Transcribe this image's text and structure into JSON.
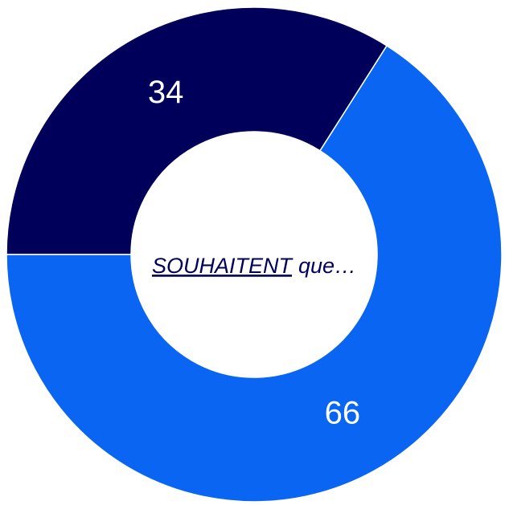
{
  "chart_data": {
    "type": "donut",
    "categories": [
      null,
      null
    ],
    "values": [
      34,
      66
    ],
    "colors": [
      "#00005a",
      "#0a66f2"
    ],
    "start_angle": 270,
    "center_text": [
      "SOUHAITENT",
      "que…"
    ]
  }
}
